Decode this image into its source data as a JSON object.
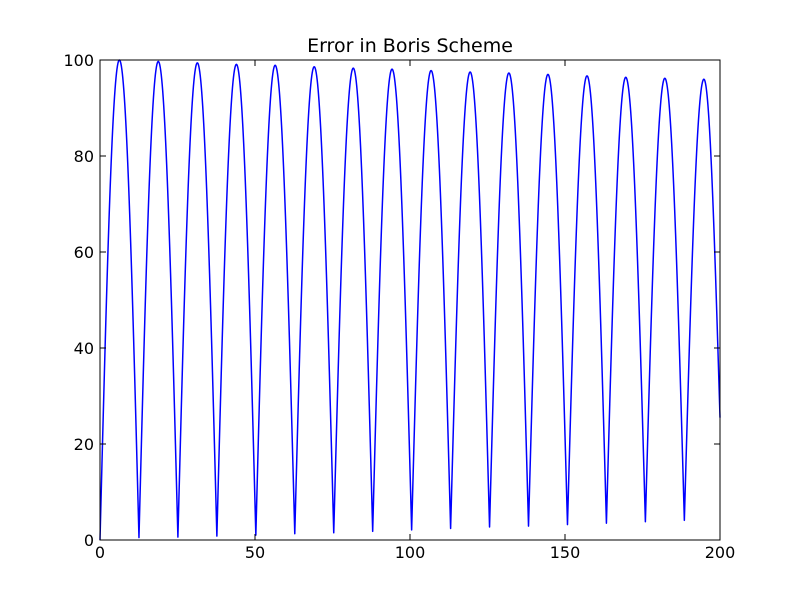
{
  "chart_data": {
    "type": "line",
    "title": "Error in Boris Scheme",
    "xlabel": "",
    "ylabel": "",
    "xlim": [
      0,
      200
    ],
    "ylim": [
      0,
      100
    ],
    "xticks": [
      0,
      50,
      100,
      150,
      200
    ],
    "yticks": [
      0,
      20,
      40,
      60,
      80,
      100
    ],
    "grid": false,
    "legend": "none",
    "line_color": "#0000ff",
    "series": [
      {
        "x": [
          0,
          6.25,
          12.57,
          18.8,
          25.13,
          31.4,
          37.7,
          44.0,
          50.27,
          56.5,
          62.83,
          69.1,
          75.4,
          81.7,
          87.96,
          94.2,
          100.53,
          106.8,
          113.1,
          119.4,
          125.66,
          131.9,
          138.23,
          144.5,
          150.8,
          157.1,
          163.36,
          169.6,
          175.93,
          182.2,
          188.5,
          194.8,
          200
        ],
        "values": [
          0,
          100,
          0.5,
          99.7,
          0.6,
          99.4,
          0.8,
          99.1,
          1.0,
          98.9,
          1.3,
          98.6,
          1.5,
          98.3,
          1.8,
          98.1,
          2.1,
          97.8,
          2.4,
          97.5,
          2.7,
          97.3,
          2.9,
          97.0,
          3.2,
          96.7,
          3.5,
          96.4,
          3.8,
          96.2,
          4.1,
          96.0,
          25.5
        ]
      }
    ]
  }
}
